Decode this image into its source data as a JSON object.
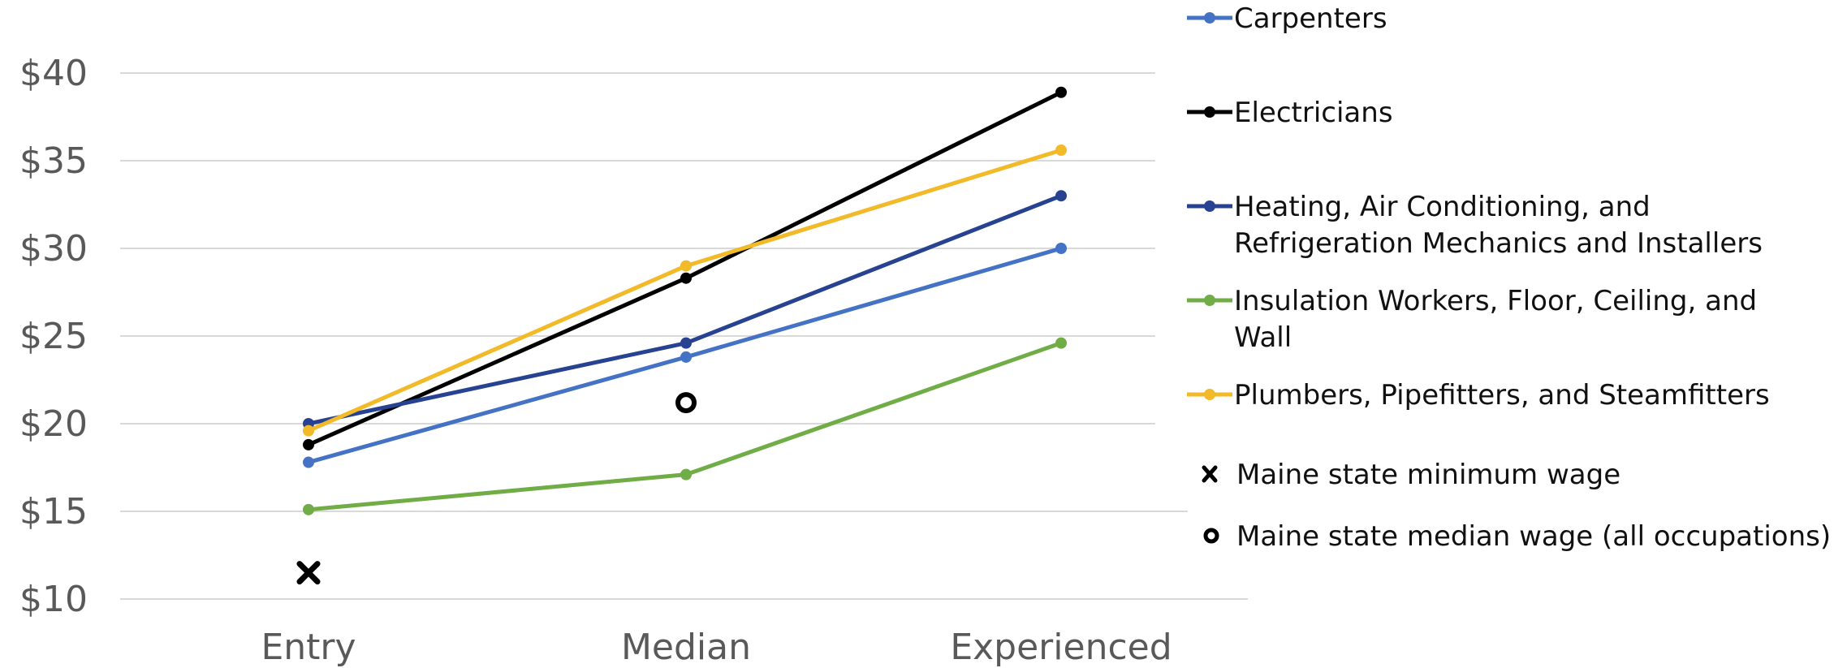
{
  "chart_data": {
    "type": "line",
    "categories": [
      "Entry",
      "Median",
      "Experienced"
    ],
    "y_ticks": [
      "$10",
      "$15",
      "$20",
      "$25",
      "$30",
      "$35",
      "$40"
    ],
    "ylim": [
      10,
      40
    ],
    "grid": true,
    "legend_position": "right",
    "series": [
      {
        "name": "Carpenters",
        "color": "#4472c4",
        "values": [
          17.8,
          23.8,
          30.0
        ]
      },
      {
        "name": "Electricians",
        "color": "#000000",
        "values": [
          18.8,
          28.3,
          38.9
        ]
      },
      {
        "name": "Heating, Air Conditioning, and Refrigeration Mechanics and Installers",
        "color": "#264291",
        "values": [
          20.0,
          24.6,
          33.0
        ]
      },
      {
        "name": "Insulation Workers, Floor, Ceiling, and Wall",
        "color": "#70ad47",
        "values": [
          15.1,
          17.1,
          24.6
        ]
      },
      {
        "name": "Plumbers, Pipefitters, and Steamfitters",
        "color": "#f2b928",
        "values": [
          19.6,
          29.0,
          35.6
        ]
      }
    ],
    "markers": [
      {
        "name": "Maine state minimum wage",
        "symbol": "x",
        "category": "Entry",
        "value": 11.5
      },
      {
        "name": "Maine state median wage (all occupations)",
        "symbol": "o",
        "category": "Median",
        "value": 21.2
      }
    ]
  },
  "legend": [
    {
      "lines": [
        "Carpenters"
      ],
      "color": "#4472c4",
      "symbol": "line"
    },
    {
      "lines": [
        "Electricians"
      ],
      "color": "#000000",
      "symbol": "line"
    },
    {
      "lines": [
        "Heating, Air Conditioning, and",
        "Refrigeration Mechanics and Installers"
      ],
      "color": "#264291",
      "symbol": "line"
    },
    {
      "lines": [
        "Insulation Workers, Floor, Ceiling, and",
        "Wall"
      ],
      "color": "#70ad47",
      "symbol": "line"
    },
    {
      "lines": [
        "Plumbers, Pipefitters, and Steamfitters"
      ],
      "color": "#f2b928",
      "symbol": "line"
    },
    {
      "lines": [
        "Maine state minimum wage"
      ],
      "color": "#000000",
      "symbol": "x"
    },
    {
      "lines": [
        "Maine state median wage (all occupations)"
      ],
      "color": "#000000",
      "symbol": "o"
    }
  ]
}
